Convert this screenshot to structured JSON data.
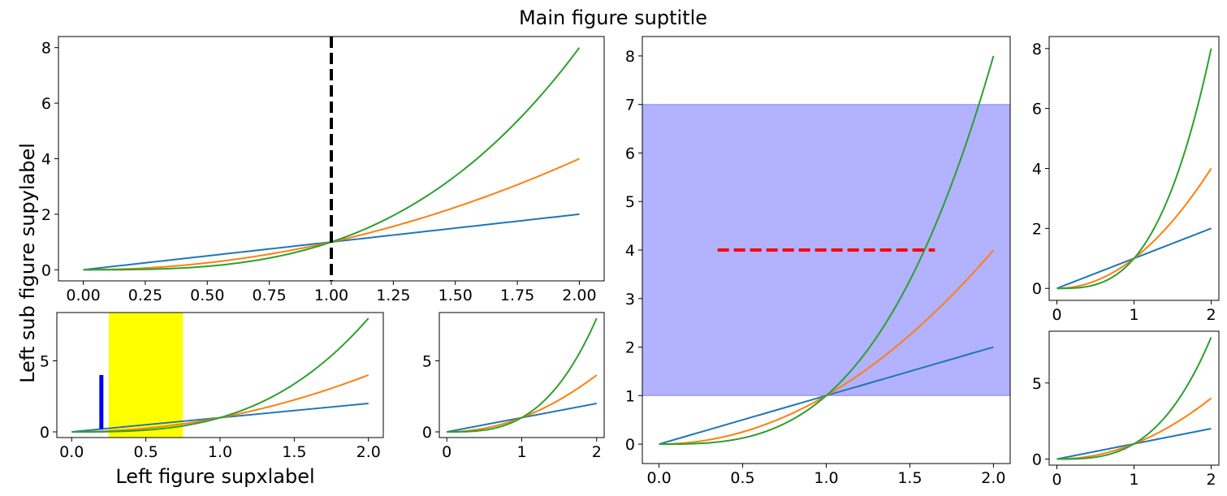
{
  "figure": {
    "suptitle": "Main figure suptitle",
    "left_supylabel": "Left sub figure supylabel",
    "left_supxlabel": "Left figure supxlabel"
  },
  "colors": {
    "series": [
      "#1f77b4",
      "#ff7f0e",
      "#2ca02c"
    ],
    "vline": "#000000",
    "hline": "#ff0000",
    "axvspan": "#ffff00",
    "axhspan": "#0000ff",
    "vbar": "#0000ff"
  },
  "chart_data": [
    {
      "id": "top-left",
      "type": "line",
      "title": "",
      "xlabel": "",
      "ylabel": "",
      "xlim": [
        -0.1,
        2.1
      ],
      "ylim": [
        -0.4,
        8.4
      ],
      "xticks": [
        0,
        0.25,
        0.5,
        0.75,
        1.0,
        1.25,
        1.5,
        1.75,
        2.0
      ],
      "xtick_labels": [
        "0.00",
        "0.25",
        "0.50",
        "0.75",
        "1.00",
        "1.25",
        "1.50",
        "1.75",
        "2.00"
      ],
      "yticks": [
        0,
        2,
        4,
        6,
        8
      ],
      "ytick_labels": [
        "0",
        "2",
        "4",
        "6",
        "8"
      ],
      "x": [
        0,
        0.25,
        0.5,
        0.75,
        1.0,
        1.25,
        1.5,
        1.75,
        2.0
      ],
      "series": [
        {
          "values": [
            0,
            0.25,
            0.5,
            0.75,
            1.0,
            1.25,
            1.5,
            1.75,
            2.0
          ]
        },
        {
          "values": [
            0,
            0.0625,
            0.25,
            0.5625,
            1.0,
            1.5625,
            2.25,
            3.0625,
            4.0
          ]
        },
        {
          "values": [
            0,
            0.0156,
            0.125,
            0.4219,
            1.0,
            1.9531,
            3.375,
            5.3594,
            8.0
          ]
        }
      ],
      "annotations": [
        {
          "kind": "vline",
          "x": 1.0,
          "style": "dashed",
          "color": "#000000"
        }
      ],
      "grid": false
    },
    {
      "id": "bottom-left",
      "type": "line",
      "title": "",
      "xlim": [
        -0.1,
        2.1
      ],
      "ylim": [
        -0.4,
        8.4
      ],
      "xticks": [
        0,
        0.5,
        1.0,
        1.5,
        2.0
      ],
      "xtick_labels": [
        "0.0",
        "0.5",
        "1.0",
        "1.5",
        "2.0"
      ],
      "yticks": [
        0,
        5
      ],
      "ytick_labels": [
        "0",
        "5"
      ],
      "x": [
        0,
        0.25,
        0.5,
        0.75,
        1.0,
        1.25,
        1.5,
        1.75,
        2.0
      ],
      "series": [
        {
          "values": [
            0,
            0.25,
            0.5,
            0.75,
            1.0,
            1.25,
            1.5,
            1.75,
            2.0
          ]
        },
        {
          "values": [
            0,
            0.0625,
            0.25,
            0.5625,
            1.0,
            1.5625,
            2.25,
            3.0625,
            4.0
          ]
        },
        {
          "values": [
            0,
            0.0156,
            0.125,
            0.4219,
            1.0,
            1.9531,
            3.375,
            5.3594,
            8.0
          ]
        }
      ],
      "annotations": [
        {
          "kind": "axvspan",
          "x0": 0.25,
          "x1": 0.75,
          "color": "#ffff00"
        },
        {
          "kind": "vbar",
          "x": 0.2,
          "y0": 0.2,
          "y1": 4.0,
          "color": "#0000ff"
        }
      ],
      "grid": false
    },
    {
      "id": "bottom-middle",
      "type": "line",
      "title": "",
      "xlim": [
        -0.1,
        2.1
      ],
      "ylim": [
        -0.4,
        8.4
      ],
      "xticks": [
        0,
        1,
        2
      ],
      "xtick_labels": [
        "0",
        "1",
        "2"
      ],
      "yticks": [
        0,
        5
      ],
      "ytick_labels": [
        "0",
        "5"
      ],
      "x": [
        0,
        0.25,
        0.5,
        0.75,
        1.0,
        1.25,
        1.5,
        1.75,
        2.0
      ],
      "series": [
        {
          "values": [
            0,
            0.25,
            0.5,
            0.75,
            1.0,
            1.25,
            1.5,
            1.75,
            2.0
          ]
        },
        {
          "values": [
            0,
            0.0625,
            0.25,
            0.5625,
            1.0,
            1.5625,
            2.25,
            3.0625,
            4.0
          ]
        },
        {
          "values": [
            0,
            0.0156,
            0.125,
            0.4219,
            1.0,
            1.9531,
            3.375,
            5.3594,
            8.0
          ]
        }
      ],
      "annotations": [],
      "grid": false
    },
    {
      "id": "center",
      "type": "line",
      "title": "",
      "xlim": [
        -0.1,
        2.1
      ],
      "ylim": [
        -0.4,
        8.4
      ],
      "xticks": [
        0,
        0.5,
        1.0,
        1.5,
        2.0
      ],
      "xtick_labels": [
        "0.0",
        "0.5",
        "1.0",
        "1.5",
        "2.0"
      ],
      "yticks": [
        0,
        1,
        2,
        3,
        4,
        5,
        6,
        7,
        8
      ],
      "ytick_labels": [
        "0",
        "1",
        "2",
        "3",
        "4",
        "5",
        "6",
        "7",
        "8"
      ],
      "x": [
        0,
        0.25,
        0.5,
        0.75,
        1.0,
        1.25,
        1.5,
        1.75,
        2.0
      ],
      "series": [
        {
          "values": [
            0,
            0.25,
            0.5,
            0.75,
            1.0,
            1.25,
            1.5,
            1.75,
            2.0
          ]
        },
        {
          "values": [
            0,
            0.0625,
            0.25,
            0.5625,
            1.0,
            1.5625,
            2.25,
            3.0625,
            4.0
          ]
        },
        {
          "values": [
            0,
            0.0156,
            0.125,
            0.4219,
            1.0,
            1.9531,
            3.375,
            5.3594,
            8.0
          ]
        }
      ],
      "annotations": [
        {
          "kind": "axhspan",
          "y0": 1.0,
          "y1": 7.0,
          "color": "#0000ff",
          "alpha": 0.3
        },
        {
          "kind": "hline",
          "y": 4.0,
          "x0": 0.35,
          "x1": 1.65,
          "style": "dashed",
          "color": "#ff0000"
        }
      ],
      "grid": false
    },
    {
      "id": "right-top",
      "type": "line",
      "title": "",
      "xlim": [
        -0.1,
        2.1
      ],
      "ylim": [
        -0.4,
        8.4
      ],
      "xticks": [
        0,
        1,
        2
      ],
      "xtick_labels": [
        "0",
        "1",
        "2"
      ],
      "yticks": [
        0,
        2,
        4,
        6,
        8
      ],
      "ytick_labels": [
        "0",
        "2",
        "4",
        "6",
        "8"
      ],
      "x": [
        0,
        0.25,
        0.5,
        0.75,
        1.0,
        1.25,
        1.5,
        1.75,
        2.0
      ],
      "series": [
        {
          "values": [
            0,
            0.25,
            0.5,
            0.75,
            1.0,
            1.25,
            1.5,
            1.75,
            2.0
          ]
        },
        {
          "values": [
            0,
            0.0625,
            0.25,
            0.5625,
            1.0,
            1.5625,
            2.25,
            3.0625,
            4.0
          ]
        },
        {
          "values": [
            0,
            0.0156,
            0.125,
            0.4219,
            1.0,
            1.9531,
            3.375,
            5.3594,
            8.0
          ]
        }
      ],
      "annotations": [],
      "grid": false
    },
    {
      "id": "right-bottom",
      "type": "line",
      "title": "",
      "xlim": [
        -0.1,
        2.1
      ],
      "ylim": [
        -0.4,
        8.4
      ],
      "xticks": [
        0,
        1,
        2
      ],
      "xtick_labels": [
        "0",
        "1",
        "2"
      ],
      "yticks": [
        0,
        5
      ],
      "ytick_labels": [
        "0",
        "5"
      ],
      "x": [
        0,
        0.25,
        0.5,
        0.75,
        1.0,
        1.25,
        1.5,
        1.75,
        2.0
      ],
      "series": [
        {
          "values": [
            0,
            0.25,
            0.5,
            0.75,
            1.0,
            1.25,
            1.5,
            1.75,
            2.0
          ]
        },
        {
          "values": [
            0,
            0.0625,
            0.25,
            0.5625,
            1.0,
            1.5625,
            2.25,
            3.0625,
            4.0
          ]
        },
        {
          "values": [
            0,
            0.0156,
            0.125,
            0.4219,
            1.0,
            1.9531,
            3.375,
            5.3594,
            8.0
          ]
        }
      ],
      "annotations": [],
      "grid": false
    }
  ]
}
